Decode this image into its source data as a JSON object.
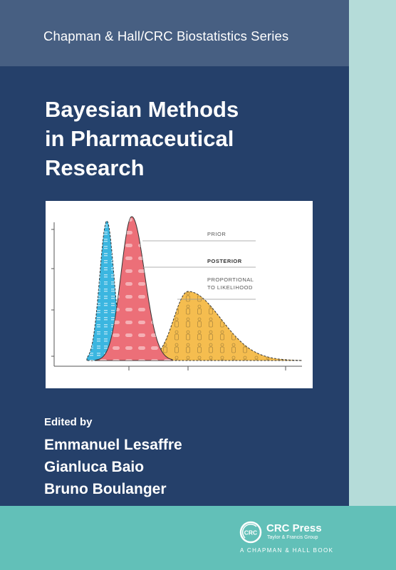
{
  "series": {
    "title": "Chapman & Hall/CRC Biostatistics Series"
  },
  "book": {
    "title_lines": [
      "Bayesian Methods",
      "in Pharmaceutical",
      "Research"
    ]
  },
  "figure": {
    "legend": {
      "prior": "PRIOR",
      "posterior": "POSTERIOR",
      "likelihood_line1": "PROPORTIONAL",
      "likelihood_line2": "TO LIKELIHOOD"
    },
    "colors": {
      "prior": "#3bb6e0",
      "posterior": "#ec6f78",
      "likelihood": "#f5bd4f"
    }
  },
  "editors": {
    "label": "Edited by",
    "names": [
      "Emmanuel Lesaffre",
      "Gianluca Baio",
      "Bruno Boulanger"
    ]
  },
  "publisher": {
    "logo_text": "CRC",
    "name": "CRC Press",
    "group": "Taylor & Francis Group",
    "imprint": "A CHAPMAN & HALL BOOK"
  },
  "colors": {
    "cover": "#25406a",
    "series_band": "#475f82",
    "spine": "#b5dcd9",
    "bottom_band": "#62c0b8"
  }
}
